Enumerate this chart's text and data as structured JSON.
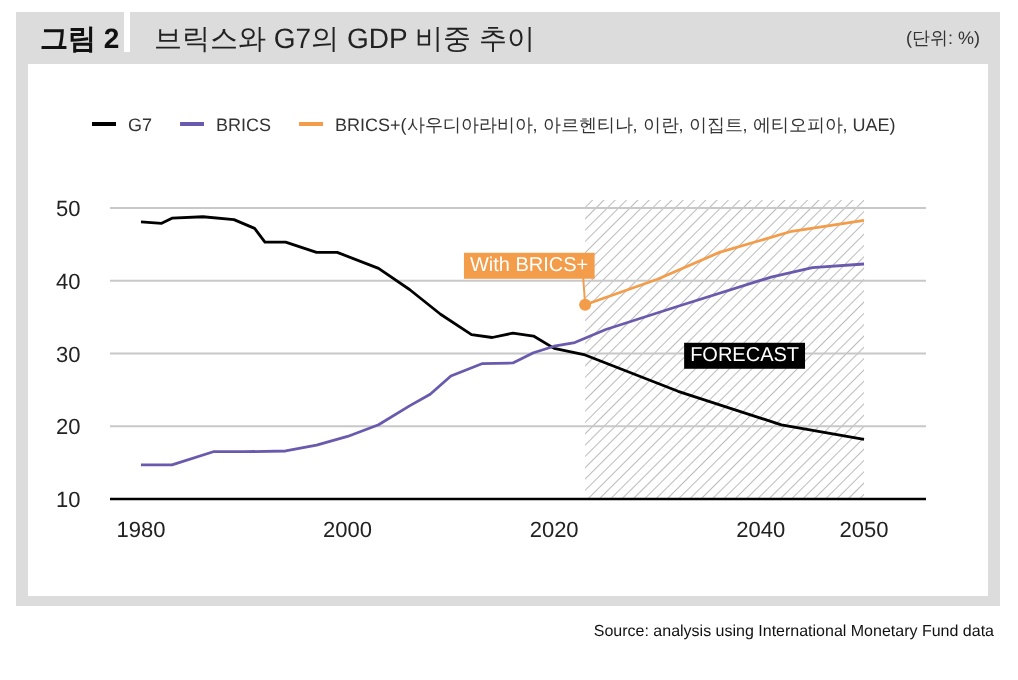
{
  "chart_data": {
    "type": "line",
    "subtitle": "그림 2",
    "title": "브릭스와 G7의 GDP 비중 추이",
    "xlim": [
      1977,
      2056
    ],
    "xticks": [
      1980,
      2000,
      2020,
      2040,
      2050
    ],
    "ylim": [
      10,
      50
    ],
    "yticks": [
      10,
      20,
      30,
      40,
      50
    ],
    "grid": "y",
    "legend": "top",
    "marker": "none",
    "line_style": "solid",
    "series": [
      {
        "name": "G7",
        "color": "#000000",
        "x": [
          1980,
          1982,
          1983,
          1986,
          1989,
          1991,
          1992,
          1994,
          1997,
          1999,
          2003,
          2006,
          2009,
          2012,
          2014,
          2016,
          2018,
          2020,
          2023,
          2032,
          2042,
          2050
        ],
        "values": [
          48.1,
          47.9,
          48.6,
          48.8,
          48.4,
          47.2,
          45.3,
          45.3,
          43.9,
          43.9,
          41.7,
          38.8,
          35.4,
          32.6,
          32.2,
          32.8,
          32.4,
          30.7,
          29.8,
          24.8,
          20.2,
          18.2
        ]
      },
      {
        "name": "BRICS",
        "color": "#6a5aad",
        "x": [
          1980,
          1983,
          1987,
          1990,
          1994,
          1997,
          2000,
          2003,
          2006,
          2008,
          2010,
          2013,
          2016,
          2018,
          2020,
          2022,
          2025,
          2032,
          2041,
          2045,
          2050
        ],
        "values": [
          14.7,
          14.7,
          16.5,
          16.5,
          16.6,
          17.4,
          18.6,
          20.2,
          22.8,
          24.4,
          26.9,
          28.6,
          28.7,
          30.1,
          31.0,
          31.5,
          33.3,
          36.5,
          40.5,
          41.8,
          42.3
        ]
      },
      {
        "name": "BRICS+(사우디아라비아, 아르헨티나, 이란, 이집트, 에티오피아, UAE)",
        "color": "#f39c4a",
        "x": [
          2023,
          2030,
          2036,
          2043,
          2050
        ],
        "values": [
          36.7,
          40.2,
          43.9,
          46.8,
          48.3
        ]
      }
    ],
    "bands": [
      {
        "axis": "x",
        "from": 2023,
        "to": 2050,
        "label": "FORECAST"
      }
    ],
    "annotations": [
      {
        "text": "With BRICS+",
        "x": 2023,
        "y": 36.7
      },
      "(단위: %)",
      "Source: analysis using International Monetary Fund data"
    ]
  }
}
